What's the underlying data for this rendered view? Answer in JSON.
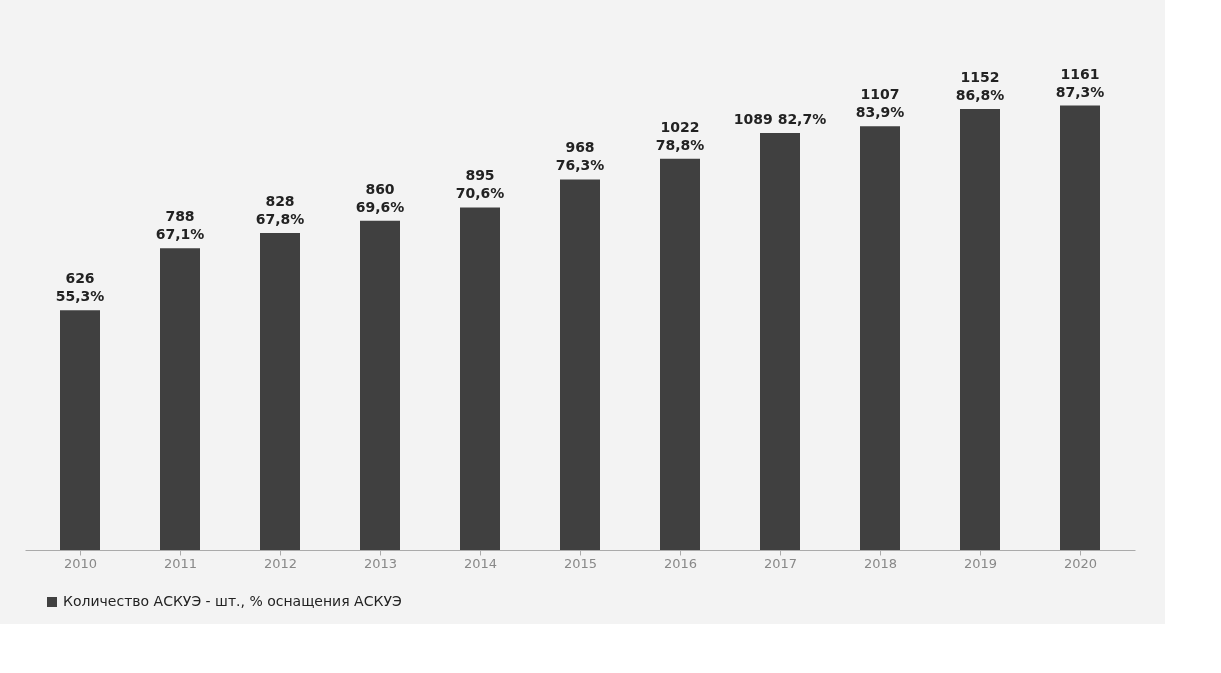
{
  "chart_data": {
    "type": "bar",
    "categories": [
      "2010",
      "2011",
      "2012",
      "2013",
      "2014",
      "2015",
      "2016",
      "2017",
      "2018",
      "2019",
      "2020"
    ],
    "series": [
      {
        "name": "Количество АСКУЭ - шт., % оснащения АСКУЭ",
        "color": "#404040",
        "values": [
          626,
          788,
          828,
          860,
          895,
          968,
          1022,
          1089,
          1107,
          1152,
          1161
        ],
        "value_labels": [
          "626\n55,3%",
          "788\n67,1%",
          "828\n67,8%",
          "860\n69,6%",
          "895\n70,6%",
          "968\n76,3%",
          "1022\n78,8%",
          "1089 82,7%",
          "1107\n83,9%",
          "1152\n86,8%",
          "1161\n87,3%"
        ]
      }
    ],
    "legend": "bottom left",
    "grid": false
  }
}
